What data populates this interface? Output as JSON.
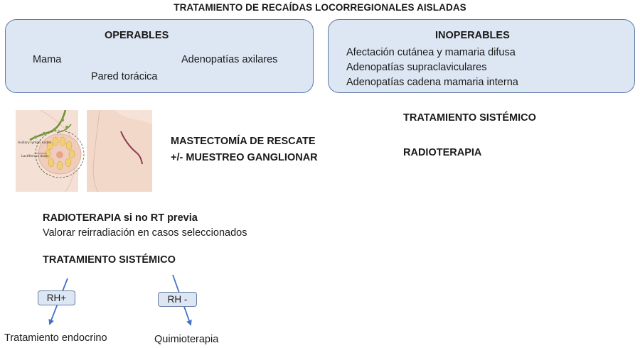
{
  "title": "TRATAMIENTO DE RECAÍDAS LOCORREGIONALES AISLADAS",
  "operables": {
    "heading": "OPERABLES",
    "items": [
      "Mama",
      "Pared torácica",
      "Adenopatías axilares"
    ]
  },
  "inoperables": {
    "heading": "INOPERABLES",
    "items": [
      "Afectación cutánea y mamaria difusa",
      "Adenopatías supraclaviculares",
      "Adenopatías cadena mamaria interna"
    ]
  },
  "illustration": {
    "label_nodes": "Axillary lymph nodes",
    "label_ducts": "Lactiferous ducts"
  },
  "surgery": {
    "line1": "MASTECTOMÍA DE RESCATE",
    "line2": "+/- MUESTREO GANGLIONAR"
  },
  "inoperable_treatments": [
    "TRATAMIENTO SISTÉMICO",
    "RADIOTERAPIA"
  ],
  "radiotherapy": {
    "heading": "RADIOTERAPIA si no RT previa",
    "note": "Valorar reirradiación en casos seleccionados"
  },
  "systemic": {
    "heading": "TRATAMIENTO SISTÉMICO",
    "branches": [
      {
        "label": "RH+",
        "outcome": "Tratamiento endocrino"
      },
      {
        "label": "RH -",
        "outcome": "Quimioterapia"
      }
    ]
  },
  "colors": {
    "box_fill": "#dde6f3",
    "box_border": "#5f79a3",
    "arrow": "#4472c4"
  }
}
